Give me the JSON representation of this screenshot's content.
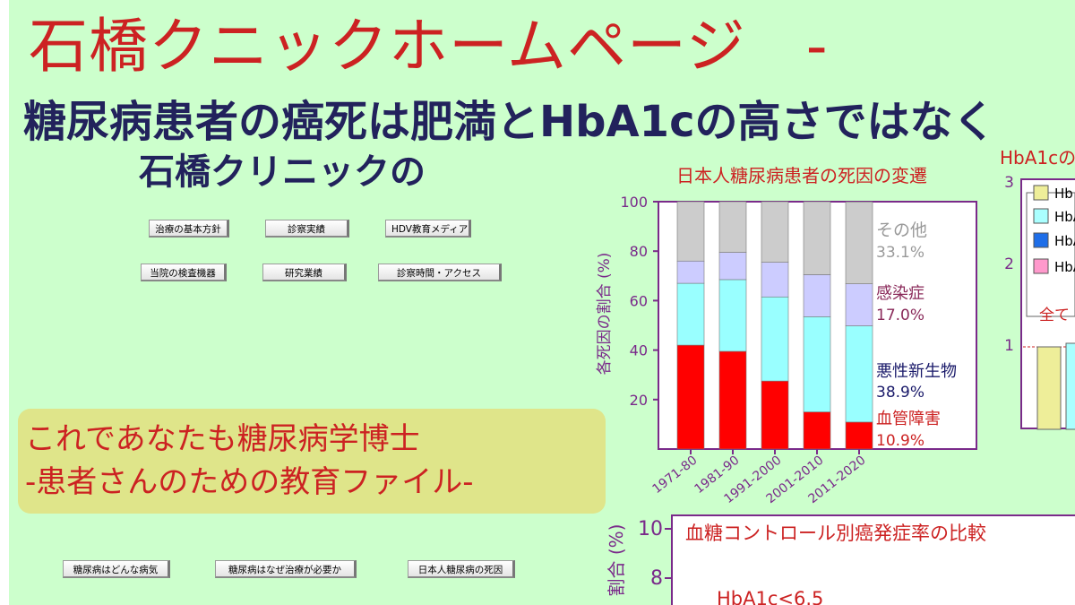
{
  "header": {
    "site_title": "石橋クニックホームページ　-",
    "headline": "糖尿病患者の癌死は肥満とHbA1cの高さではなく",
    "sub_headline": "石橋クリニックの"
  },
  "nav": {
    "row1": [
      "治療の基本方針",
      "診察実績",
      "HDV教育メディア"
    ],
    "row2": [
      "当院の検査機器",
      "研究業績",
      "診察時間・アクセス"
    ],
    "row3": [
      "糖尿病はどんな病気",
      "糖尿病はなぜ治療が必要か",
      "日本人糖尿病の死因"
    ]
  },
  "banner": {
    "line1": "これであなたも糖尿病学博士",
    "line2": "-患者さんのための教育ファイル-"
  },
  "colors": {
    "title_red": "#cc2222",
    "navy": "#22225c",
    "page_bg": "#ccffcc",
    "banner_bg": "#dfe58a",
    "frame_purple": "#7a2a8a"
  },
  "chart_data": [
    {
      "type": "bar",
      "stacked": true,
      "title": "日本人糖尿病患者の死因の変遷",
      "ylabel": "各死因の割合 (%)",
      "ylim": [
        0,
        100
      ],
      "yticks": [
        "20",
        "40",
        "60",
        "80",
        "100"
      ],
      "categories": [
        "1971-80",
        "1981-90",
        "1991-2000",
        "2001-2010",
        "2011-2020"
      ],
      "series": [
        {
          "name": "血管障害",
          "color": "#ff0000",
          "values": [
            42,
            39.5,
            27.5,
            15,
            10.9
          ]
        },
        {
          "name": "悪性新生物",
          "color": "#99ffff",
          "values": [
            25,
            29,
            34,
            38.5,
            38.9
          ]
        },
        {
          "name": "感染症",
          "color": "#ccccff",
          "values": [
            9,
            11,
            14,
            17,
            17.0
          ]
        },
        {
          "name": "その他",
          "color": "#cccccc",
          "values": [
            24,
            20.5,
            24.5,
            29.5,
            33.1
          ]
        }
      ],
      "annotations": [
        {
          "label": "その他",
          "value": "33.1%",
          "color": "#999999"
        },
        {
          "label": "感染症",
          "value": "17.0%",
          "color": "#8a2a5a"
        },
        {
          "label": "悪性新生物",
          "value": "38.9%",
          "color": "#1a1a6a"
        },
        {
          "label": "血管障害",
          "value": "10.9%",
          "color": "#cc2222"
        }
      ]
    },
    {
      "type": "bar",
      "title": "血糖コントロール別癌発症率の比較",
      "ylabel": "割合 (%)",
      "yticks": [
        "8",
        "10"
      ],
      "annotations": [
        {
          "label": "HbA1c<6.5"
        }
      ]
    },
    {
      "type": "bar",
      "title": "HbA1cの",
      "yticks": [
        "1",
        "2",
        "3"
      ],
      "legend": [
        {
          "label": "Hb",
          "color": "#eeee99"
        },
        {
          "label": "HbA",
          "color": "#aaffff"
        },
        {
          "label": "HbA",
          "color": "#1e6ee8"
        },
        {
          "label": "HbA",
          "color": "#ff99cc"
        }
      ],
      "annotations": [
        {
          "label": "全て"
        }
      ]
    }
  ]
}
